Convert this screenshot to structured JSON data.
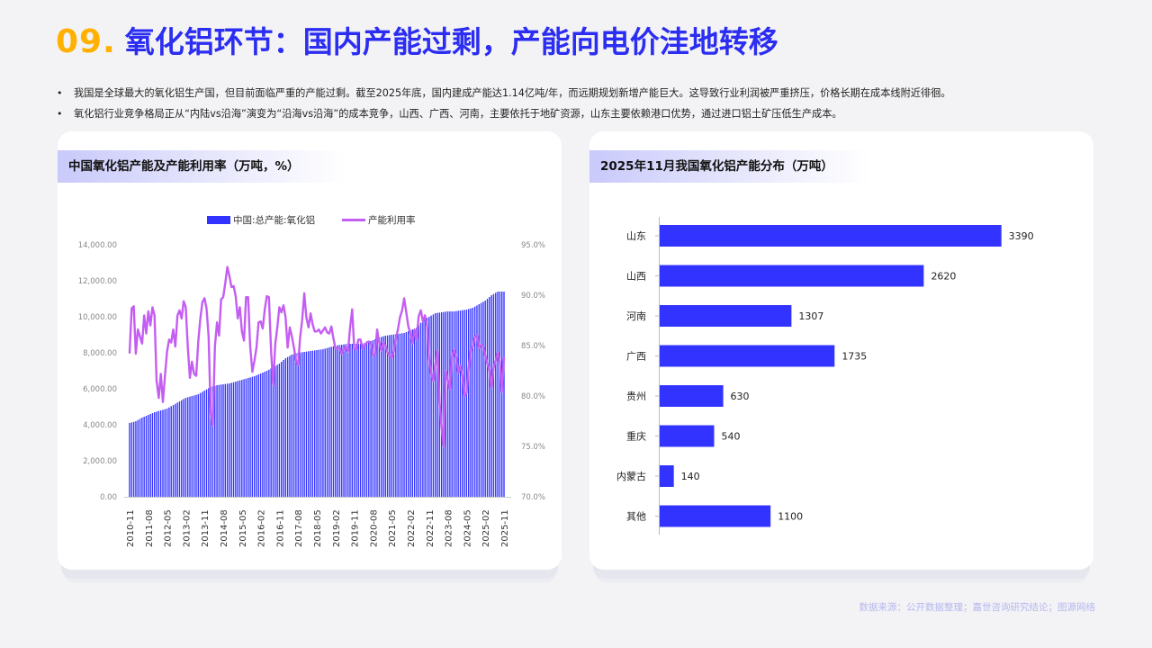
{
  "page": {
    "title_num": "09.",
    "title": "氧化铝环节：国内产能过剩，产能向电价洼地转移",
    "bullets": [
      "我国是全球最大的氧化铝生产国，但目前面临严重的产能过剩。截至2025年底，国内建成产能达1.14亿吨/年，而远期规划新增产能巨大。这导致行业利润被严重挤压，价格长期在成本线附近徘徊。",
      "氧化铝行业竞争格局正从“内陆vs沿海”演变为“沿海vs沿海”的成本竞争，山西、广西、河南，主要依托于地矿资源，山东主要依赖港口优势，通过进口铝土矿压低生产成本。"
    ],
    "source": "数据来源：公开数据整理；嘉世咨询研究结论；图源网络"
  },
  "colors": {
    "bar": "#3333ff",
    "line": "#c45ef2",
    "title_num": "#ffb000",
    "title": "#2b2df2"
  },
  "chart_data": [
    {
      "type": "bar+line",
      "title": "中国氧化铝产能及产能利用率（万吨，%）",
      "legend": [
        "中国:总产能:氧化铝",
        "产能利用率"
      ],
      "legend_position": "top",
      "y_left": {
        "ylim": [
          0,
          14000
        ],
        "ticks": [
          "0.00",
          "2,000.00",
          "4,000.00",
          "6,000.00",
          "8,000.00",
          "10,000.00",
          "12,000.00",
          "14,000.00"
        ]
      },
      "y_right": {
        "ylim": [
          70,
          95
        ],
        "ticks": [
          "70.0%",
          "75.0%",
          "80.0%",
          "85.0%",
          "90.0%",
          "95.0%"
        ]
      },
      "x_ticks": [
        "2010-11",
        "2011-08",
        "2012-05",
        "2013-02",
        "2013-11",
        "2014-08",
        "2015-05",
        "2016-02",
        "2016-11",
        "2017-08",
        "2018-05",
        "2019-02",
        "2019-11",
        "2020-08",
        "2021-05",
        "2022-02",
        "2022-11",
        "2023-08",
        "2024-05",
        "2025-02",
        "2025-11"
      ],
      "capacity_points": [
        [
          "2010-11",
          4100
        ],
        [
          "2011-02",
          4200
        ],
        [
          "2011-05",
          4400
        ],
        [
          "2011-08",
          4550
        ],
        [
          "2011-11",
          4700
        ],
        [
          "2012-02",
          4800
        ],
        [
          "2012-05",
          4900
        ],
        [
          "2012-08",
          5100
        ],
        [
          "2012-11",
          5300
        ],
        [
          "2013-02",
          5500
        ],
        [
          "2013-05",
          5600
        ],
        [
          "2013-08",
          5700
        ],
        [
          "2013-11",
          5900
        ],
        [
          "2014-02",
          6100
        ],
        [
          "2014-05",
          6200
        ],
        [
          "2014-08",
          6250
        ],
        [
          "2014-11",
          6300
        ],
        [
          "2015-02",
          6400
        ],
        [
          "2015-05",
          6500
        ],
        [
          "2015-08",
          6600
        ],
        [
          "2015-11",
          6700
        ],
        [
          "2016-02",
          6850
        ],
        [
          "2016-05",
          7000
        ],
        [
          "2016-08",
          7200
        ],
        [
          "2016-11",
          7400
        ],
        [
          "2017-02",
          7700
        ],
        [
          "2017-05",
          7900
        ],
        [
          "2017-08",
          8000
        ],
        [
          "2017-11",
          8050
        ],
        [
          "2018-02",
          8100
        ],
        [
          "2018-05",
          8150
        ],
        [
          "2018-08",
          8200
        ],
        [
          "2018-11",
          8300
        ],
        [
          "2019-02",
          8400
        ],
        [
          "2019-05",
          8450
        ],
        [
          "2019-08",
          8500
        ],
        [
          "2019-11",
          8500
        ],
        [
          "2020-02",
          8500
        ],
        [
          "2020-05",
          8550
        ],
        [
          "2020-08",
          8700
        ],
        [
          "2020-11",
          8850
        ],
        [
          "2021-02",
          8950
        ],
        [
          "2021-05",
          9000
        ],
        [
          "2021-08",
          9050
        ],
        [
          "2021-11",
          9100
        ],
        [
          "2022-02",
          9250
        ],
        [
          "2022-05",
          9400
        ],
        [
          "2022-08",
          9800
        ],
        [
          "2022-11",
          10000
        ],
        [
          "2023-02",
          10200
        ],
        [
          "2023-05",
          10250
        ],
        [
          "2023-08",
          10300
        ],
        [
          "2023-11",
          10300
        ],
        [
          "2024-02",
          10350
        ],
        [
          "2024-05",
          10400
        ],
        [
          "2024-08",
          10500
        ],
        [
          "2024-11",
          10700
        ],
        [
          "2025-02",
          10900
        ],
        [
          "2025-05",
          11200
        ],
        [
          "2025-08",
          11400
        ],
        [
          "2025-11",
          11400
        ]
      ],
      "utilization_points": [
        [
          "2010-11",
          84.3
        ],
        [
          "2010-12",
          88.7
        ],
        [
          "2011-01",
          88.9
        ],
        [
          "2011-02",
          84.2
        ],
        [
          "2011-03",
          86.6
        ],
        [
          "2011-05",
          85.2
        ],
        [
          "2011-06",
          88.0
        ],
        [
          "2011-07",
          86.2
        ],
        [
          "2011-08",
          88.4
        ],
        [
          "2011-09",
          87.0
        ],
        [
          "2011-10",
          88.8
        ],
        [
          "2011-11",
          88.0
        ],
        [
          "2011-12",
          81.5
        ],
        [
          "2012-01",
          79.8
        ],
        [
          "2012-02",
          82.2
        ],
        [
          "2012-03",
          79.4
        ],
        [
          "2012-04",
          82.0
        ],
        [
          "2012-05",
          84.4
        ],
        [
          "2012-06",
          85.6
        ],
        [
          "2012-07",
          85.3
        ],
        [
          "2012-08",
          86.6
        ],
        [
          "2012-09",
          84.9
        ],
        [
          "2012-10",
          88.0
        ],
        [
          "2012-11",
          88.5
        ],
        [
          "2012-12",
          87.7
        ],
        [
          "2013-01",
          89.4
        ],
        [
          "2013-02",
          88.8
        ],
        [
          "2013-03",
          84.8
        ],
        [
          "2013-04",
          81.8
        ],
        [
          "2013-05",
          83.4
        ],
        [
          "2013-06",
          82.2
        ],
        [
          "2013-07",
          82.0
        ],
        [
          "2013-08",
          85.4
        ],
        [
          "2013-09",
          87.7
        ],
        [
          "2013-10",
          89.3
        ],
        [
          "2013-11",
          89.7
        ],
        [
          "2013-12",
          88.7
        ],
        [
          "2014-01",
          85.9
        ],
        [
          "2014-02",
          78.3
        ],
        [
          "2014-03",
          77.1
        ],
        [
          "2014-04",
          84.9
        ],
        [
          "2014-05",
          87.3
        ],
        [
          "2014-06",
          86.0
        ],
        [
          "2014-07",
          89.6
        ],
        [
          "2014-08",
          89.8
        ],
        [
          "2014-09",
          91.2
        ],
        [
          "2014-10",
          92.8
        ],
        [
          "2014-11",
          91.9
        ],
        [
          "2014-12",
          90.8
        ],
        [
          "2015-01",
          90.9
        ],
        [
          "2015-02",
          89.9
        ],
        [
          "2015-03",
          87.7
        ],
        [
          "2015-04",
          88.8
        ],
        [
          "2015-05",
          86.4
        ],
        [
          "2015-06",
          85.5
        ],
        [
          "2015-07",
          89.8
        ],
        [
          "2015-08",
          89.8
        ],
        [
          "2015-09",
          84.9
        ],
        [
          "2015-10",
          82.4
        ],
        [
          "2015-11",
          83.5
        ],
        [
          "2015-12",
          84.8
        ],
        [
          "2016-01",
          87.3
        ],
        [
          "2016-02",
          87.4
        ],
        [
          "2016-03",
          86.7
        ],
        [
          "2016-04",
          88.6
        ],
        [
          "2016-05",
          89.9
        ],
        [
          "2016-06",
          89.8
        ],
        [
          "2016-07",
          84.5
        ],
        [
          "2016-08",
          81.1
        ],
        [
          "2016-09",
          85.1
        ],
        [
          "2016-10",
          86.8
        ],
        [
          "2016-11",
          88.8
        ],
        [
          "2016-12",
          88.3
        ],
        [
          "2017-01",
          89.0
        ],
        [
          "2017-02",
          87.8
        ],
        [
          "2017-03",
          84.8
        ],
        [
          "2017-04",
          86.8
        ],
        [
          "2017-05",
          85.9
        ],
        [
          "2017-06",
          84.8
        ],
        [
          "2017-07",
          83.5
        ],
        [
          "2017-08",
          83.1
        ],
        [
          "2017-09",
          85.8
        ],
        [
          "2017-10",
          87.6
        ],
        [
          "2017-11",
          90.2
        ],
        [
          "2017-12",
          87.8
        ],
        [
          "2018-01",
          86.8
        ],
        [
          "2018-02",
          88.2
        ],
        [
          "2018-03",
          87.1
        ],
        [
          "2018-04",
          86.4
        ],
        [
          "2018-05",
          86.4
        ],
        [
          "2018-06",
          86.6
        ],
        [
          "2018-07",
          86.2
        ],
        [
          "2018-08",
          86.5
        ],
        [
          "2018-09",
          86.8
        ],
        [
          "2018-10",
          86.3
        ],
        [
          "2018-11",
          86.2
        ],
        [
          "2018-12",
          86.9
        ],
        [
          "2019-01",
          85.7
        ],
        [
          "2019-02",
          84.7
        ],
        [
          "2019-03",
          84.7
        ],
        [
          "2019-04",
          84.8
        ],
        [
          "2019-05",
          84.2
        ],
        [
          "2019-06",
          84.6
        ],
        [
          "2019-07",
          84.9
        ],
        [
          "2019-08",
          84.4
        ],
        [
          "2019-09",
          86.8
        ],
        [
          "2019-10",
          88.6
        ],
        [
          "2019-11",
          84.7
        ],
        [
          "2019-12",
          84.6
        ],
        [
          "2020-01",
          85.6
        ],
        [
          "2020-02",
          85.6
        ],
        [
          "2020-03",
          84.7
        ],
        [
          "2020-04",
          85.0
        ],
        [
          "2020-05",
          85.3
        ],
        [
          "2020-06",
          85.4
        ],
        [
          "2020-07",
          85.2
        ],
        [
          "2020-08",
          84.0
        ],
        [
          "2020-09",
          84.1
        ],
        [
          "2020-10",
          86.6
        ],
        [
          "2020-11",
          85.3
        ],
        [
          "2020-12",
          84.5
        ],
        [
          "2021-01",
          85.3
        ],
        [
          "2021-02",
          85.0
        ],
        [
          "2021-03",
          84.3
        ],
        [
          "2021-04",
          84.0
        ],
        [
          "2021-05",
          83.8
        ],
        [
          "2021-06",
          84.4
        ],
        [
          "2021-07",
          85.6
        ],
        [
          "2021-08",
          86.6
        ],
        [
          "2021-09",
          87.8
        ],
        [
          "2021-10",
          88.5
        ],
        [
          "2021-11",
          89.7
        ],
        [
          "2021-12",
          88.3
        ],
        [
          "2022-01",
          86.9
        ],
        [
          "2022-02",
          86.2
        ],
        [
          "2022-03",
          85.2
        ],
        [
          "2022-04",
          86.6
        ],
        [
          "2022-05",
          85.6
        ],
        [
          "2022-06",
          87.9
        ],
        [
          "2022-07",
          88.5
        ],
        [
          "2022-08",
          87.4
        ],
        [
          "2022-09",
          88.0
        ],
        [
          "2022-10",
          87.0
        ],
        [
          "2022-11",
          83.7
        ],
        [
          "2022-12",
          82.2
        ],
        [
          "2023-01",
          81.5
        ],
        [
          "2023-02",
          83.1
        ],
        [
          "2023-03",
          84.5
        ],
        [
          "2023-04",
          79.3
        ],
        [
          "2023-05",
          76.9
        ],
        [
          "2023-06",
          75.0
        ],
        [
          "2023-07",
          82.5
        ],
        [
          "2023-08",
          81.6
        ],
        [
          "2023-09",
          80.7
        ],
        [
          "2023-10",
          84.0
        ],
        [
          "2023-11",
          84.6
        ],
        [
          "2023-12",
          83.9
        ],
        [
          "2024-01",
          82.3
        ],
        [
          "2024-02",
          83.0
        ],
        [
          "2024-03",
          82.1
        ],
        [
          "2024-04",
          80.0
        ],
        [
          "2024-05",
          80.3
        ],
        [
          "2024-06",
          82.7
        ],
        [
          "2024-07",
          84.5
        ],
        [
          "2024-08",
          84.9
        ],
        [
          "2024-09",
          85.8
        ],
        [
          "2024-10",
          86.0
        ],
        [
          "2024-11",
          84.8
        ],
        [
          "2024-12",
          85.1
        ],
        [
          "2025-01",
          84.9
        ],
        [
          "2025-02",
          84.0
        ],
        [
          "2025-03",
          83.2
        ],
        [
          "2025-04",
          82.6
        ],
        [
          "2025-05",
          80.8
        ],
        [
          "2025-06",
          82.8
        ],
        [
          "2025-07",
          83.5
        ],
        [
          "2025-08",
          84.3
        ],
        [
          "2025-09",
          83.4
        ],
        [
          "2025-10",
          80.4
        ],
        [
          "2025-11",
          83.8
        ]
      ]
    },
    {
      "type": "bar",
      "orientation": "horizontal",
      "title": "2025年11月我国氧化铝产能分布（万吨）",
      "categories": [
        "山东",
        "山西",
        "河南",
        "广西",
        "贵州",
        "重庆",
        "内蒙古",
        "其他"
      ],
      "values": [
        3390,
        2620,
        1307,
        1735,
        630,
        540,
        140,
        1100
      ],
      "xlim": [
        0,
        3500
      ]
    }
  ]
}
